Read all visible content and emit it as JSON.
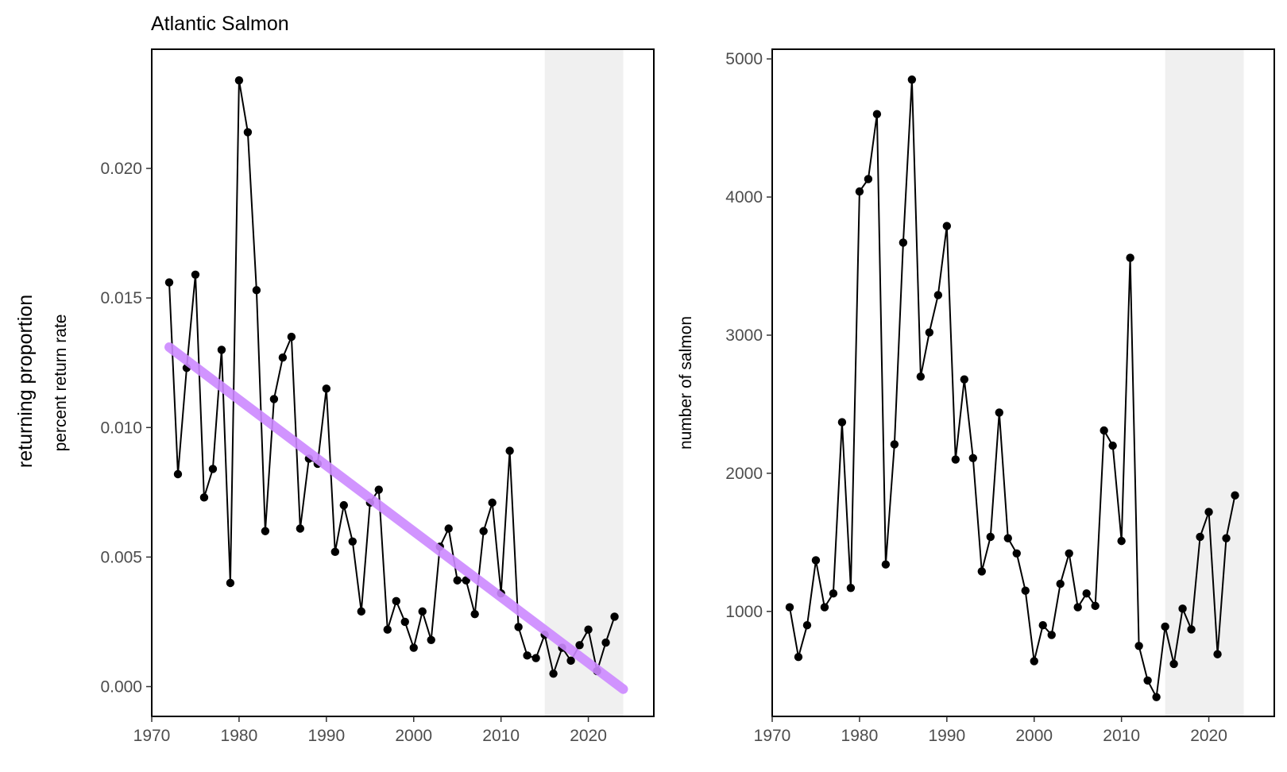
{
  "figure": {
    "title": "Atlantic Salmon",
    "outer_ylabel": "returning proportion"
  },
  "colors": {
    "line": "#000000",
    "trend": "#cc88ff",
    "shade": "#ebebeb",
    "panel_border": "#000000",
    "tick_text": "#4d4d4d"
  },
  "chart_data": [
    {
      "type": "line",
      "title": "Atlantic Salmon",
      "xlabel": "",
      "ylabel": "percent return rate",
      "xlim": [
        1970,
        2027.5
      ],
      "ylim": [
        -0.00115,
        0.0246
      ],
      "x_ticks": [
        1970,
        1980,
        1990,
        2000,
        2010,
        2020
      ],
      "y_ticks": [
        0.0,
        0.005,
        0.01,
        0.015,
        0.02
      ],
      "y_tick_labels": [
        "0.000",
        "0.005",
        "0.010",
        "0.015",
        "0.020"
      ],
      "shaded_region": [
        2015,
        2024
      ],
      "grid": false,
      "series": [
        {
          "x": [
            1972,
            1973,
            1974,
            1975,
            1976,
            1977,
            1978,
            1979,
            1980,
            1981,
            1982,
            1983,
            1984,
            1985,
            1986,
            1987,
            1988,
            1989,
            1990,
            1991,
            1992,
            1993,
            1994,
            1995,
            1996,
            1997,
            1998,
            1999,
            2000,
            2001,
            2002,
            2003,
            2004,
            2005,
            2006,
            2007,
            2008,
            2009,
            2010,
            2011,
            2012,
            2013,
            2014,
            2015,
            2016,
            2017,
            2018,
            2019,
            2020,
            2021,
            2022,
            2023
          ],
          "values": [
            0.0156,
            0.0082,
            0.0123,
            0.0159,
            0.0073,
            0.0084,
            0.013,
            0.004,
            0.0234,
            0.0214,
            0.0153,
            0.006,
            0.0111,
            0.0127,
            0.0135,
            0.0061,
            0.0088,
            0.0086,
            0.0115,
            0.0052,
            0.007,
            0.0056,
            0.0029,
            0.0071,
            0.0076,
            0.0022,
            0.0033,
            0.0025,
            0.0015,
            0.0029,
            0.0018,
            0.0054,
            0.0061,
            0.0041,
            0.0041,
            0.0028,
            0.006,
            0.0071,
            0.0036,
            0.0091,
            0.0023,
            0.0012,
            0.0011,
            0.002,
            0.0005,
            0.0015,
            0.001,
            0.0016,
            0.0022,
            0.0006,
            0.0017,
            0.0027
          ]
        },
        {
          "style": "trend",
          "x": [
            1972,
            2024
          ],
          "values": [
            0.0131,
            -0.0001
          ]
        }
      ]
    },
    {
      "type": "line",
      "title": "",
      "xlabel": "",
      "ylabel": "number of salmon",
      "xlim": [
        1970,
        2027.5
      ],
      "ylim": [
        240,
        5070
      ],
      "x_ticks": [
        1970,
        1980,
        1990,
        2000,
        2010,
        2020
      ],
      "y_ticks": [
        1000,
        2000,
        3000,
        4000,
        5000
      ],
      "y_tick_labels": [
        "1000",
        "2000",
        "3000",
        "4000",
        "5000"
      ],
      "shaded_region": [
        2015,
        2024
      ],
      "grid": false,
      "series": [
        {
          "x": [
            1972,
            1973,
            1974,
            1975,
            1976,
            1977,
            1978,
            1979,
            1980,
            1981,
            1982,
            1983,
            1984,
            1985,
            1986,
            1987,
            1988,
            1989,
            1990,
            1991,
            1992,
            1993,
            1994,
            1995,
            1996,
            1997,
            1998,
            1999,
            2000,
            2001,
            2002,
            2003,
            2004,
            2005,
            2006,
            2007,
            2008,
            2009,
            2010,
            2011,
            2012,
            2013,
            2014,
            2015,
            2016,
            2017,
            2018,
            2019,
            2020,
            2021,
            2022,
            2023
          ],
          "values": [
            1030,
            670,
            900,
            1370,
            1030,
            1130,
            2370,
            1170,
            4040,
            4130,
            4600,
            1340,
            2210,
            3670,
            4850,
            2700,
            3020,
            3290,
            3790,
            2100,
            2680,
            2110,
            1290,
            1540,
            2440,
            1530,
            1420,
            1150,
            640,
            900,
            830,
            1200,
            1420,
            1030,
            1130,
            1040,
            2310,
            2200,
            1510,
            3560,
            750,
            500,
            380,
            890,
            620,
            1020,
            870,
            1540,
            1720,
            690,
            1530,
            1840
          ]
        }
      ]
    }
  ]
}
